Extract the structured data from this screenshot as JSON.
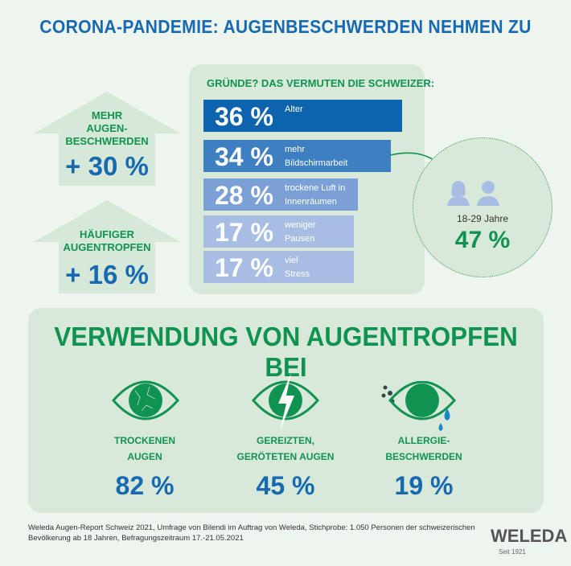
{
  "title": "CORONA-PANDEMIE: AUGENBESCHWERDEN NEHMEN ZU",
  "arrows": [
    {
      "label": [
        "MEHR",
        "AUGEN-",
        "BESCHWERDEN"
      ],
      "value": "+ 30 %"
    },
    {
      "label": [
        "HÄUFIGER",
        "AUGENTROPFEN"
      ],
      "value": "+ 16 %"
    }
  ],
  "reasons": {
    "title": "GRÜNDE? DAS VERMUTEN DIE SCHWEIZER:",
    "items": [
      {
        "pct": "36 %",
        "label": [
          "Alter"
        ],
        "color": "#0b64ad"
      },
      {
        "pct": "34 %",
        "label": [
          "mehr",
          "Bildschirmarbeit"
        ],
        "color": "#3e7fc2"
      },
      {
        "pct": "28 %",
        "label": [
          "trockene Luft in",
          "Innenräumen"
        ],
        "color": "#7aa0d6"
      },
      {
        "pct": "17 %",
        "label": [
          "weniger",
          "Pausen"
        ],
        "color": "#a8bde3"
      },
      {
        "pct": "17 %",
        "label": [
          "viel",
          "Stress"
        ],
        "color": "#a8bde3"
      }
    ]
  },
  "chart_data": {
    "type": "bar",
    "title": "GRÜNDE? DAS VERMUTEN DIE SCHWEIZER:",
    "categories": [
      "Alter",
      "mehr Bildschirmarbeit",
      "trockene Luft in Innenräumen",
      "weniger Pausen",
      "viel Stress"
    ],
    "values": [
      36,
      34,
      28,
      17,
      17
    ]
  },
  "callout": {
    "age": "18-29 Jahre",
    "value": "47 %",
    "icons": [
      "woman-icon",
      "man-icon"
    ]
  },
  "usage": {
    "title": "VERWENDUNG VON AUGENTROPFEN BEI",
    "items": [
      {
        "label": [
          "TROCKENEN",
          "AUGEN"
        ],
        "value": "82 %",
        "icon": "dry-eye-icon"
      },
      {
        "label": [
          "GEREIZTEN,",
          "GERÖTETEN AUGEN"
        ],
        "value": "45 %",
        "icon": "irritated-eye-icon"
      },
      {
        "label": [
          "ALLERGIE-",
          "BESCHWERDEN"
        ],
        "value": "19 %",
        "icon": "allergy-eye-icon"
      }
    ]
  },
  "footer": [
    "Weleda Augen-Report Schweiz 2021, Umfrage von Bilendi im Auftrag von Weleda, Stichprobe: 1.050 Personen der schweizerischen",
    "Bevölkerung ab 18 Jahren, Befragungszeitraum 17.-21.05.2021"
  ],
  "logo": {
    "name": "WELEDA",
    "since": "Seit 1921"
  },
  "colors": {
    "green": "#109350",
    "blue": "#1769b1",
    "panel": "#d8e9da",
    "background": "#eef5ef"
  }
}
